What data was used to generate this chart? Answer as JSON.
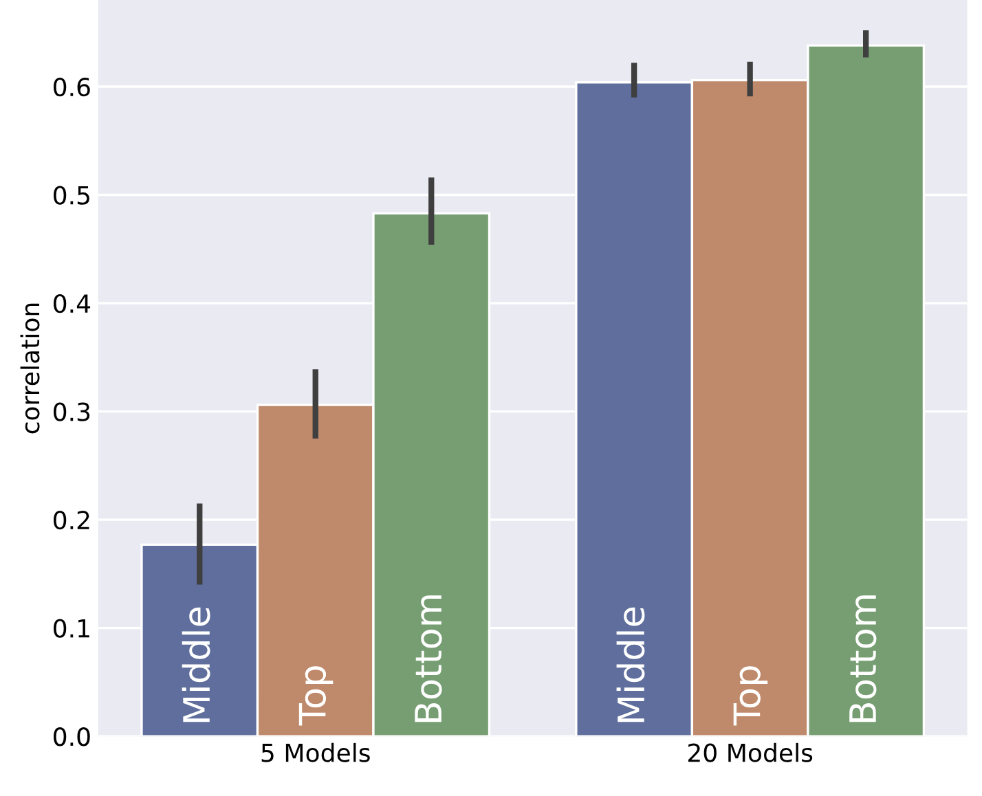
{
  "chart_data": {
    "type": "bar",
    "ylabel": "correlation",
    "categories": [
      "5 Models",
      "20 Models"
    ],
    "series": [
      {
        "name": "Middle",
        "color": "#5f6e9c",
        "values": [
          0.177,
          0.604
        ],
        "errors": [
          [
            0.14,
            0.215
          ],
          [
            0.59,
            0.622
          ]
        ]
      },
      {
        "name": "Top",
        "color": "#bf8a6b",
        "values": [
          0.306,
          0.606
        ],
        "errors": [
          [
            0.275,
            0.339
          ],
          [
            0.591,
            0.623
          ]
        ]
      },
      {
        "name": "Bottom",
        "color": "#779e73",
        "values": [
          0.483,
          0.638
        ],
        "errors": [
          [
            0.454,
            0.516
          ],
          [
            0.627,
            0.652
          ]
        ]
      }
    ],
    "ylim": [
      0,
      0.68
    ],
    "yticks": [
      {
        "value": 0,
        "label": "0.0"
      },
      0.1,
      0.2,
      0.3,
      0.4,
      0.5,
      0.6
    ],
    "grid": "y",
    "legend": false
  }
}
